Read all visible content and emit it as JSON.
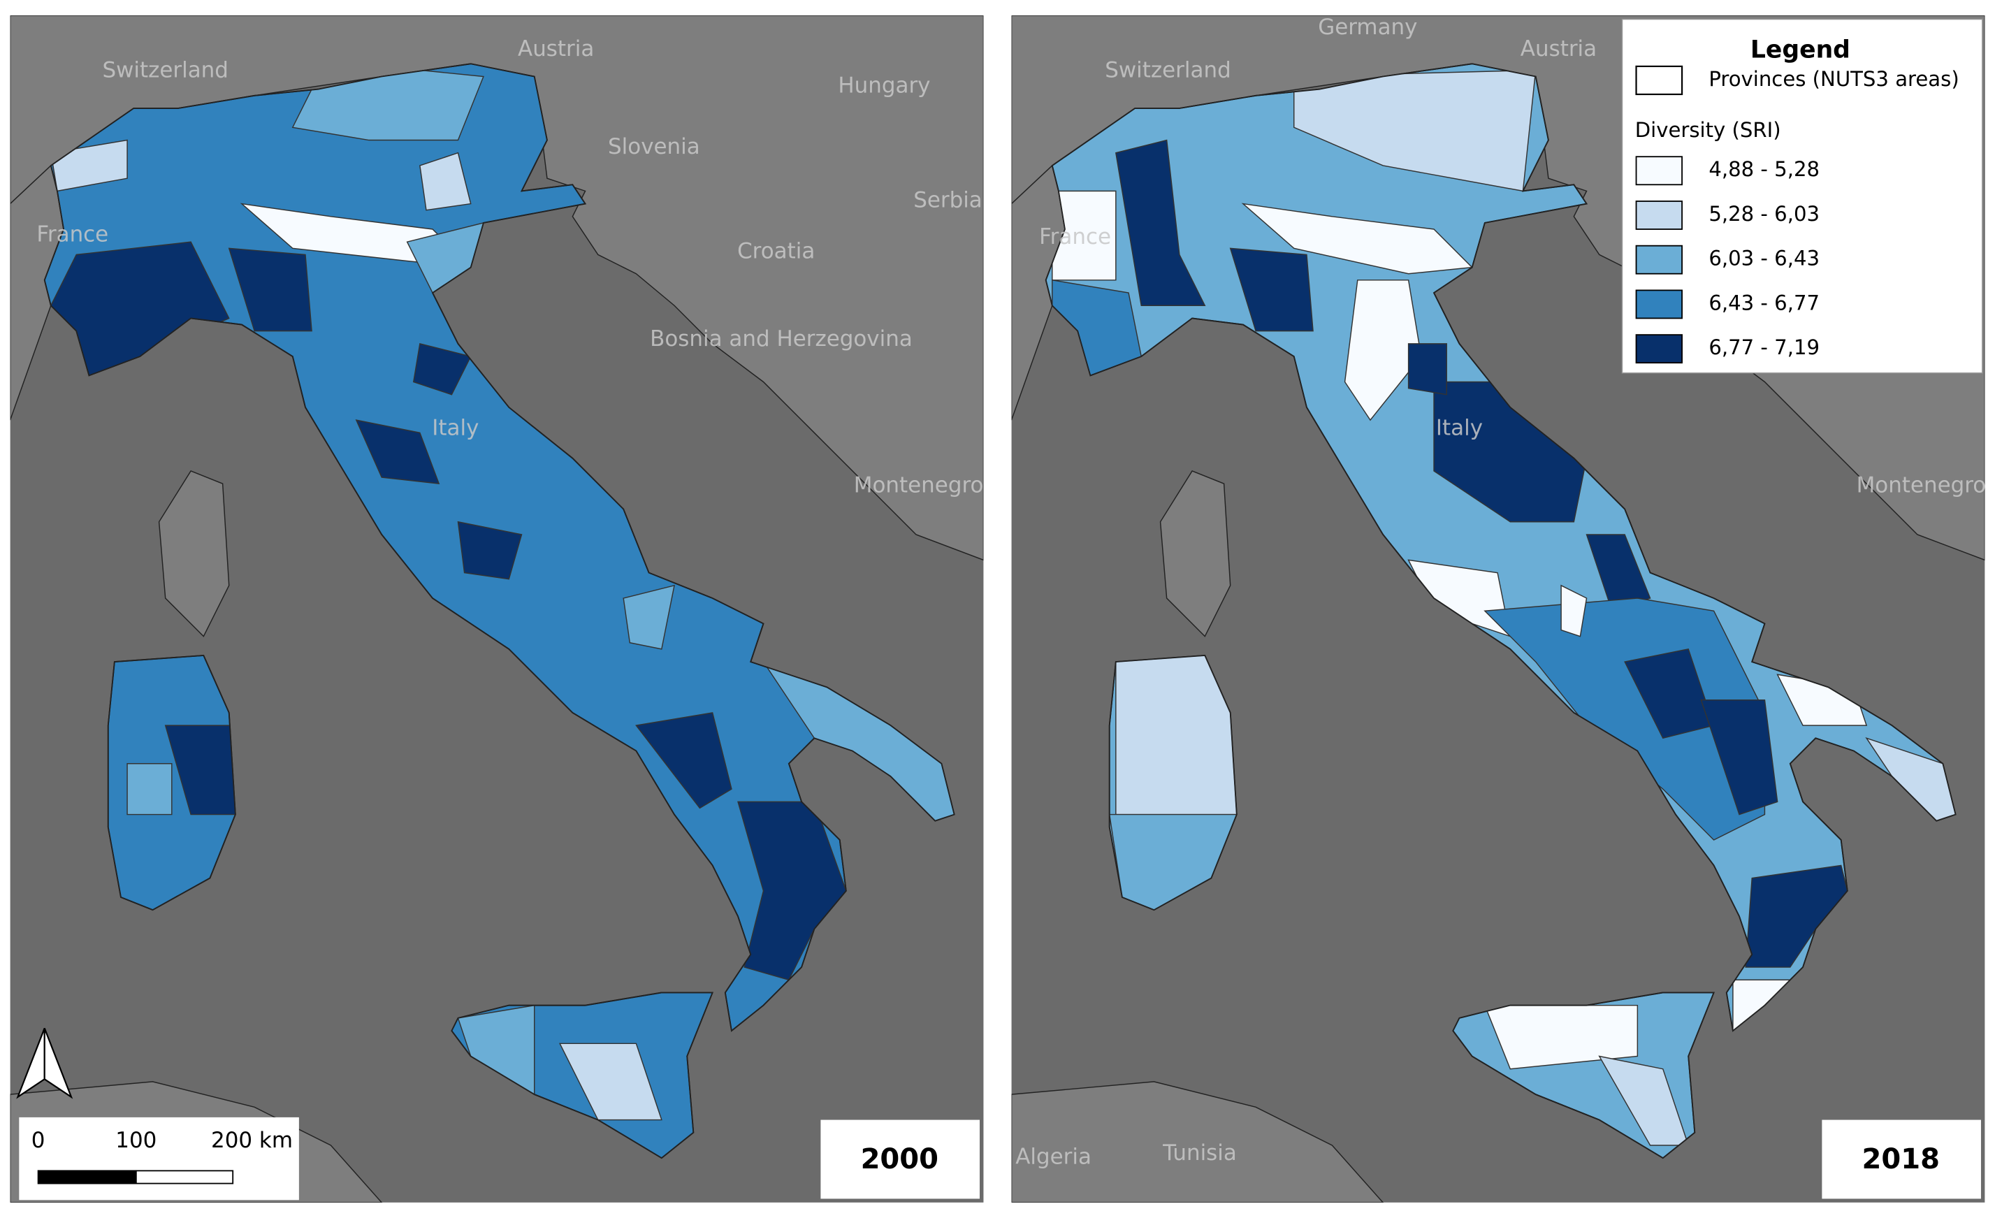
{
  "maps": [
    {
      "year": "2000",
      "countries": [
        "Switzerland",
        "Austria",
        "Hungary",
        "Slovenia",
        "Serbia",
        "France",
        "Croatia",
        "Bosnia and Herzegovina",
        "Italy",
        "Montenegro"
      ]
    },
    {
      "year": "2018",
      "countries": [
        "Germany",
        "Switzerland",
        "Austria",
        "France",
        "Italy",
        "Montenegro",
        "Algeria",
        "Tunisia"
      ]
    }
  ],
  "legend": {
    "title": "Legend",
    "provinces": "Provinces (NUTS3 areas)",
    "diversity_title": "Diversity (SRI)",
    "classes": [
      {
        "label": "4,88 - 5,28",
        "color": "#f7fbff"
      },
      {
        "label": "5,28 - 6,03",
        "color": "#c6dbef"
      },
      {
        "label": "6,03 - 6,43",
        "color": "#6baed6"
      },
      {
        "label": "6,43 - 6,77",
        "color": "#3182bd"
      },
      {
        "label": "6,77 - 7,19",
        "color": "#08306b"
      }
    ]
  },
  "scale_bar": {
    "labels": [
      "0",
      "100",
      "200 km"
    ]
  }
}
